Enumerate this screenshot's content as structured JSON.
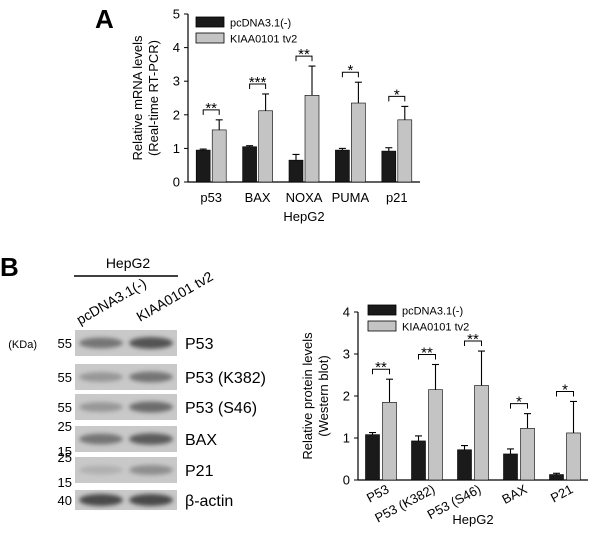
{
  "panels": {
    "a_label": "A",
    "b_label": "B"
  },
  "blot": {
    "cell_line": "HepG2",
    "lanes": [
      "pcDNA3.1(-)",
      "KIAA0101 tv2"
    ],
    "kda_unit": "(KDa)",
    "rows": [
      {
        "protein": "P53",
        "markers": [
          "55"
        ],
        "band_intensity": [
          0.55,
          0.75
        ]
      },
      {
        "protein": "P53 (K382)",
        "markers": [
          "55"
        ],
        "band_intensity": [
          0.35,
          0.55
        ]
      },
      {
        "protein": "P53 (S46)",
        "markers": [
          "55"
        ],
        "band_intensity": [
          0.35,
          0.6
        ]
      },
      {
        "protein": "BAX",
        "markers": [
          "25",
          "15"
        ],
        "band_intensity": [
          0.55,
          0.7
        ]
      },
      {
        "protein": "P21",
        "markers": [
          "25",
          "15"
        ],
        "band_intensity": [
          0.2,
          0.4
        ]
      },
      {
        "protein": "β-actin",
        "markers": [
          "40"
        ],
        "band_intensity": [
          0.8,
          0.8
        ]
      }
    ]
  },
  "colors": {
    "control": "#1a1a1a",
    "treatment": "#c4c4c4",
    "axis": "#000000"
  },
  "chart_data": [
    {
      "type": "bar",
      "panel": "A",
      "categories": [
        "p53",
        "BAX",
        "NOXA",
        "PUMA",
        "p21"
      ],
      "series": [
        {
          "name": "pcDNA3.1(-)",
          "values": [
            0.95,
            1.05,
            0.65,
            0.95,
            0.92
          ],
          "errors": [
            0.03,
            0.03,
            0.17,
            0.05,
            0.1
          ]
        },
        {
          "name": "KIAA0101 tv2",
          "values": [
            1.55,
            2.12,
            2.58,
            2.35,
            1.85
          ],
          "errors": [
            0.3,
            0.5,
            0.87,
            0.62,
            0.4
          ]
        }
      ],
      "significance": [
        "**",
        "***",
        "**",
        "*",
        "*"
      ],
      "xlabel": "HepG2",
      "ylabel": [
        "Relative mRNA levels",
        "(Real-time RT-PCR)"
      ],
      "ylim": [
        0,
        5
      ],
      "yticks": [
        0,
        1,
        2,
        3,
        4,
        5
      ],
      "legend": "top-left",
      "grid": false
    },
    {
      "type": "bar",
      "panel": "B",
      "categories": [
        "P53",
        "P53 (K382)",
        "P53 (S46)",
        "BAX",
        "P21"
      ],
      "series": [
        {
          "name": "pcDNA3.1(-)",
          "values": [
            1.08,
            0.93,
            0.72,
            0.62,
            0.13
          ],
          "errors": [
            0.05,
            0.12,
            0.1,
            0.12,
            0.03
          ]
        },
        {
          "name": "KIAA0101 tv2",
          "values": [
            1.85,
            2.15,
            2.25,
            1.23,
            1.12
          ],
          "errors": [
            0.55,
            0.6,
            0.82,
            0.35,
            0.75
          ]
        }
      ],
      "significance": [
        "**",
        "**",
        "**",
        "*",
        "*"
      ],
      "xlabel": "HepG2",
      "ylabel": [
        "Relative protein levels",
        "(Western blot)"
      ],
      "ylim": [
        0,
        4
      ],
      "yticks": [
        0,
        1,
        2,
        3,
        4
      ],
      "legend": "top-left",
      "grid": false
    }
  ]
}
